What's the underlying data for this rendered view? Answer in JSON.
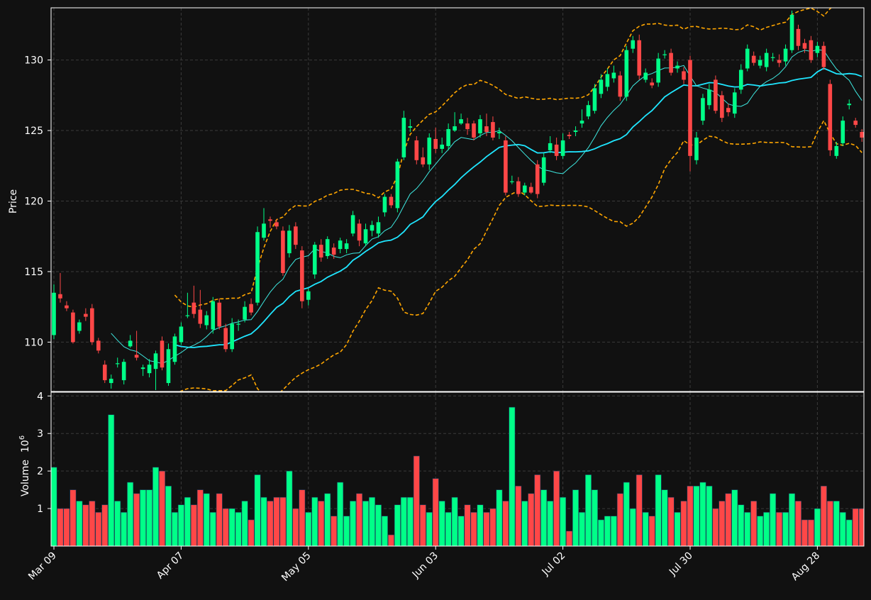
{
  "chart_data": {
    "type": "candlestick",
    "price_panel": {
      "ylabel": "Price",
      "yticks": [
        110,
        115,
        120,
        125,
        130
      ],
      "ylim": [
        106.5,
        133.7
      ],
      "ma_colors": {
        "fast": "#3ee8e0",
        "slow": "#1fe6ff"
      },
      "band_color": "#ffa600",
      "up_color": "#00ff88",
      "down_color": "#ff4747"
    },
    "volume_panel": {
      "ylabel": "Volume",
      "yunit_exponent": "6",
      "yticks": [
        1,
        2,
        3,
        4
      ],
      "ylim": [
        0,
        4.1
      ]
    },
    "x_axis": {
      "ticks": [
        {
          "label": "Mar 09",
          "index": 0
        },
        {
          "label": "Apr 07",
          "index": 20
        },
        {
          "label": "May 05",
          "index": 40
        },
        {
          "label": "Jun 03",
          "index": 60
        },
        {
          "label": "Jul 02",
          "index": 80
        },
        {
          "label": "Jul 30",
          "index": 100
        },
        {
          "label": "Aug 28",
          "index": 120
        }
      ],
      "n_bars": 127
    },
    "candles": [
      [
        110.5,
        113.5,
        114.1,
        110.2,
        2.1
      ],
      [
        113.4,
        113.1,
        114.9,
        112.8,
        1.0
      ],
      [
        112.6,
        112.4,
        112.9,
        112.2,
        1.0
      ],
      [
        112.1,
        110.0,
        112.3,
        109.9,
        1.5
      ],
      [
        110.8,
        111.4,
        111.6,
        110.6,
        1.2
      ],
      [
        112.0,
        111.8,
        112.4,
        111.5,
        1.1
      ],
      [
        112.4,
        110.0,
        112.7,
        109.8,
        1.2
      ],
      [
        110.1,
        109.4,
        110.3,
        109.2,
        0.9
      ],
      [
        108.4,
        107.3,
        108.7,
        107.1,
        1.1
      ],
      [
        107.1,
        107.4,
        107.7,
        106.7,
        3.5
      ],
      [
        108.5,
        108.5,
        108.9,
        108.2,
        1.2
      ],
      [
        107.3,
        108.6,
        108.8,
        107.0,
        0.9
      ],
      [
        109.7,
        110.1,
        110.5,
        109.6,
        1.7
      ],
      [
        109.1,
        108.9,
        110.8,
        108.7,
        1.4
      ],
      [
        108.1,
        108.2,
        108.4,
        107.6,
        1.5
      ],
      [
        107.8,
        108.4,
        108.8,
        107.5,
        1.5
      ],
      [
        108.1,
        109.2,
        109.4,
        106.6,
        2.1
      ],
      [
        110.1,
        108.2,
        110.4,
        108.0,
        2.0
      ],
      [
        107.1,
        109.5,
        109.9,
        106.9,
        1.6
      ],
      [
        108.6,
        110.4,
        110.6,
        108.4,
        0.9
      ],
      [
        110.0,
        111.1,
        111.4,
        109.8,
        1.1
      ],
      [
        111.9,
        111.9,
        113.5,
        111.7,
        1.3
      ],
      [
        112.8,
        112.0,
        114.0,
        111.7,
        1.1
      ],
      [
        112.3,
        111.3,
        113.7,
        111.0,
        1.5
      ],
      [
        111.2,
        111.9,
        112.2,
        110.9,
        1.4
      ],
      [
        110.9,
        112.9,
        113.2,
        110.6,
        0.9
      ],
      [
        112.8,
        111.1,
        113.1,
        110.9,
        1.4
      ],
      [
        111.0,
        109.5,
        111.3,
        109.3,
        1.0
      ],
      [
        109.5,
        111.3,
        111.7,
        109.3,
        1.0
      ],
      [
        111.3,
        111.3,
        111.6,
        110.8,
        0.9
      ],
      [
        111.6,
        112.5,
        112.9,
        111.4,
        1.2
      ],
      [
        112.7,
        112.1,
        113.1,
        111.9,
        0.7
      ],
      [
        112.8,
        117.8,
        118.2,
        112.6,
        1.9
      ],
      [
        117.4,
        118.4,
        119.5,
        117.2,
        1.3
      ],
      [
        118.7,
        118.6,
        118.9,
        118.1,
        1.2
      ],
      [
        118.5,
        118.2,
        118.7,
        118.0,
        1.3
      ],
      [
        117.9,
        114.9,
        118.2,
        114.7,
        1.3
      ],
      [
        116.3,
        117.9,
        118.3,
        116.0,
        2.0
      ],
      [
        118.2,
        116.9,
        118.5,
        116.6,
        1.0
      ],
      [
        116.5,
        112.9,
        116.8,
        112.4,
        1.5
      ],
      [
        113.0,
        113.6,
        113.8,
        112.6,
        0.9
      ],
      [
        114.8,
        116.9,
        117.1,
        114.5,
        1.3
      ],
      [
        116.9,
        116.0,
        117.3,
        115.7,
        1.2
      ],
      [
        116.1,
        117.3,
        117.5,
        115.9,
        1.4
      ],
      [
        116.7,
        116.2,
        117.0,
        115.9,
        0.8
      ],
      [
        116.6,
        117.2,
        117.4,
        116.3,
        1.7
      ],
      [
        116.6,
        117.0,
        117.3,
        116.3,
        0.8
      ],
      [
        117.7,
        119.0,
        119.3,
        117.5,
        1.2
      ],
      [
        118.4,
        117.2,
        118.7,
        116.8,
        1.4
      ],
      [
        117.0,
        118.0,
        118.4,
        116.8,
        1.2
      ],
      [
        117.9,
        118.3,
        118.6,
        117.5,
        1.3
      ],
      [
        117.7,
        118.5,
        118.9,
        117.4,
        1.1
      ],
      [
        119.2,
        120.3,
        120.5,
        118.9,
        0.8
      ],
      [
        120.3,
        119.7,
        120.5,
        119.5,
        0.3
      ],
      [
        119.5,
        122.8,
        123.0,
        119.2,
        1.1
      ],
      [
        123.1,
        125.9,
        126.4,
        122.9,
        1.3
      ],
      [
        125.2,
        125.3,
        125.8,
        124.9,
        1.3
      ],
      [
        124.3,
        122.9,
        124.6,
        122.6,
        2.4
      ],
      [
        123.1,
        122.6,
        123.8,
        122.4,
        1.1
      ],
      [
        122.6,
        124.5,
        124.8,
        122.2,
        0.9
      ],
      [
        124.4,
        123.7,
        125.2,
        123.4,
        1.8
      ],
      [
        123.7,
        124.0,
        124.5,
        123.4,
        1.2
      ],
      [
        123.9,
        125.1,
        125.5,
        123.6,
        0.9
      ],
      [
        125.0,
        125.3,
        126.3,
        124.9,
        1.3
      ],
      [
        125.5,
        125.8,
        126.2,
        125.4,
        0.8
      ],
      [
        125.5,
        125.1,
        125.9,
        124.7,
        1.1
      ],
      [
        125.5,
        124.5,
        125.7,
        124.3,
        0.9
      ],
      [
        124.8,
        125.8,
        126.1,
        124.5,
        1.1
      ],
      [
        125.3,
        124.9,
        126.2,
        124.6,
        0.9
      ],
      [
        125.6,
        124.5,
        126.0,
        124.3,
        1.0
      ],
      [
        124.8,
        124.9,
        125.2,
        124.4,
        1.5
      ],
      [
        124.3,
        120.6,
        124.6,
        120.4,
        1.2
      ],
      [
        121.4,
        121.4,
        121.8,
        121.2,
        3.7
      ],
      [
        121.4,
        120.5,
        121.7,
        120.3,
        1.6
      ],
      [
        120.6,
        121.1,
        121.3,
        120.4,
        1.2
      ],
      [
        121.0,
        120.6,
        121.3,
        120.5,
        1.4
      ],
      [
        122.6,
        120.5,
        122.9,
        120.2,
        1.9
      ],
      [
        121.3,
        123.1,
        123.4,
        121.1,
        1.5
      ],
      [
        123.6,
        124.1,
        124.6,
        123.4,
        1.2
      ],
      [
        124.0,
        123.2,
        124.5,
        122.9,
        2.0
      ],
      [
        123.2,
        124.3,
        124.8,
        123.0,
        1.3
      ],
      [
        124.7,
        124.6,
        124.9,
        124.4,
        0.4
      ],
      [
        124.9,
        125.0,
        125.3,
        124.6,
        1.5
      ],
      [
        125.5,
        125.7,
        126.5,
        125.2,
        0.9
      ],
      [
        126.0,
        126.8,
        127.1,
        125.8,
        1.9
      ],
      [
        126.4,
        128.0,
        128.3,
        126.2,
        1.5
      ],
      [
        127.6,
        128.6,
        129.0,
        127.3,
        0.7
      ],
      [
        128.1,
        129.0,
        129.4,
        127.8,
        0.8
      ],
      [
        128.7,
        129.1,
        129.6,
        128.4,
        0.8
      ],
      [
        128.9,
        127.4,
        129.2,
        127.1,
        1.4
      ],
      [
        127.4,
        130.7,
        131.0,
        127.1,
        1.7
      ],
      [
        130.8,
        131.4,
        131.7,
        130.5,
        1.0
      ],
      [
        131.4,
        128.9,
        131.8,
        128.6,
        1.9
      ],
      [
        128.6,
        129.1,
        129.4,
        128.4,
        0.9
      ],
      [
        128.4,
        128.2,
        128.7,
        128.0,
        0.8
      ],
      [
        128.4,
        130.1,
        130.5,
        128.1,
        1.9
      ],
      [
        130.4,
        130.4,
        130.7,
        130.1,
        1.5
      ],
      [
        130.5,
        129.1,
        130.8,
        128.9,
        1.3
      ],
      [
        129.4,
        129.6,
        129.9,
        129.1,
        0.9
      ],
      [
        129.2,
        128.6,
        129.5,
        128.3,
        1.2
      ],
      [
        130.0,
        123.2,
        130.3,
        122.1,
        1.6
      ],
      [
        122.9,
        124.5,
        124.9,
        122.6,
        1.6
      ],
      [
        125.7,
        127.3,
        127.6,
        125.4,
        1.7
      ],
      [
        126.8,
        127.9,
        128.3,
        126.5,
        1.6
      ],
      [
        128.6,
        126.4,
        128.9,
        126.2,
        1.0
      ],
      [
        127.5,
        125.9,
        127.8,
        125.6,
        1.2
      ],
      [
        126.6,
        126.3,
        126.9,
        126.0,
        1.4
      ],
      [
        126.2,
        127.7,
        128.0,
        125.9,
        1.5
      ],
      [
        127.9,
        129.3,
        129.7,
        127.6,
        1.1
      ],
      [
        129.4,
        130.8,
        131.1,
        129.2,
        0.9
      ],
      [
        130.3,
        129.8,
        130.6,
        129.6,
        1.2
      ],
      [
        129.6,
        130.0,
        130.3,
        129.4,
        0.8
      ],
      [
        129.5,
        130.5,
        130.8,
        129.2,
        0.9
      ],
      [
        130.2,
        130.2,
        130.5,
        129.9,
        1.4
      ],
      [
        130.0,
        129.8,
        130.4,
        129.5,
        0.9
      ],
      [
        129.9,
        130.8,
        131.1,
        129.6,
        0.9
      ],
      [
        130.7,
        133.2,
        133.5,
        130.5,
        1.4
      ],
      [
        132.2,
        131.0,
        132.5,
        130.7,
        1.2
      ],
      [
        131.2,
        130.8,
        131.5,
        130.5,
        0.7
      ],
      [
        131.4,
        130.0,
        131.7,
        129.8,
        0.7
      ],
      [
        130.5,
        131.0,
        131.3,
        130.2,
        1.0
      ],
      [
        131.0,
        129.5,
        131.3,
        129.3,
        1.6
      ],
      [
        128.3,
        123.6,
        128.6,
        123.2,
        1.2
      ],
      [
        123.2,
        123.9,
        124.2,
        123.0,
        1.2
      ],
      [
        124.1,
        125.7,
        126.0,
        123.9,
        0.9
      ],
      [
        126.8,
        126.9,
        127.2,
        126.5,
        0.7
      ],
      [
        125.7,
        125.4,
        125.9,
        125.2,
        1.0
      ],
      [
        124.9,
        124.5,
        125.1,
        124.2,
        1.0
      ]
    ]
  }
}
